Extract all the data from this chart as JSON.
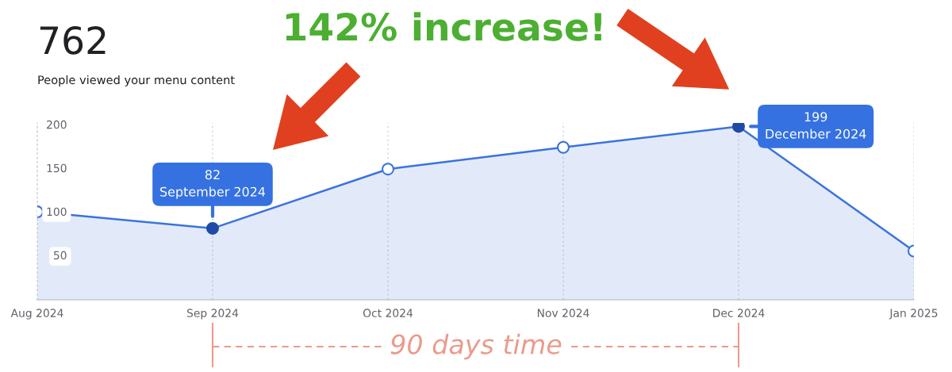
{
  "chart_data": {
    "type": "area",
    "title": "762",
    "subtitle": "People viewed your menu content",
    "categories": [
      "Aug 2024",
      "Sep 2024",
      "Oct 2024",
      "Nov 2024",
      "Dec 2024",
      "Jan 2025"
    ],
    "series": [
      {
        "color": "#3b73dd",
        "values": [
          101,
          82,
          150,
          175,
          199,
          56
        ],
        "colors": [
          "#ffffff",
          "#1f4aa8",
          "#ffffff",
          "#ffffff",
          "#1f4aa8",
          "#ffffff"
        ]
      }
    ],
    "ylim": [
      0,
      203
    ],
    "yticks": [
      50,
      100,
      150,
      200
    ],
    "grid": "x",
    "marker": "circle",
    "annotations": [
      {
        "text": "82\nSeptember 2024",
        "x": "Sep 2024",
        "y": 82
      },
      {
        "text": "199\nDecember 2024",
        "x": "Dec 2024",
        "y": 199
      },
      "142% increase!",
      "90 days time"
    ]
  }
}
